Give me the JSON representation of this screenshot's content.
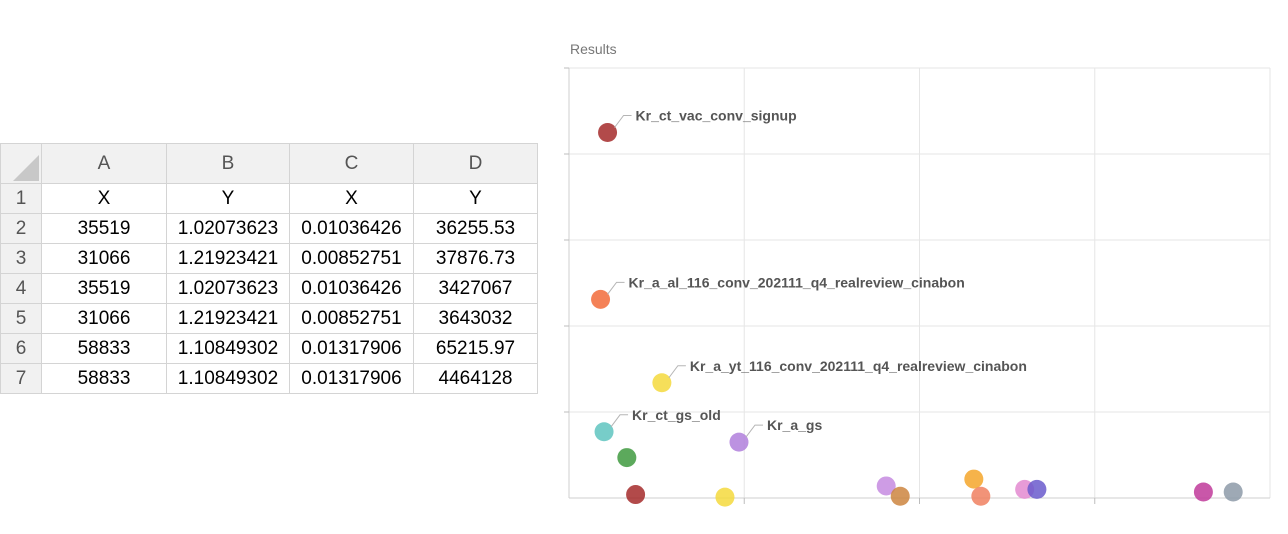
{
  "spreadsheet": {
    "columns": [
      "A",
      "B",
      "C",
      "D"
    ],
    "rows": [
      {
        "num": "1",
        "cells": [
          "X",
          "Y",
          "X",
          "Y"
        ]
      },
      {
        "num": "2",
        "cells": [
          "35519",
          "1.02073623",
          "0.01036426",
          "36255.53"
        ]
      },
      {
        "num": "3",
        "cells": [
          "31066",
          "1.21923421",
          "0.00852751",
          "37876.73"
        ]
      },
      {
        "num": "4",
        "cells": [
          "35519",
          "1.02073623",
          "0.01036426",
          "3427067"
        ]
      },
      {
        "num": "5",
        "cells": [
          "31066",
          "1.21923421",
          "0.00852751",
          "3643032"
        ]
      },
      {
        "num": "6",
        "cells": [
          "58833",
          "1.10849302",
          "0.01317906",
          "65215.97"
        ]
      },
      {
        "num": "7",
        "cells": [
          "58833",
          "1.10849302",
          "0.01317906",
          "4464128"
        ]
      }
    ]
  },
  "chart_data": {
    "type": "scatter",
    "title": "Results",
    "xlabel": "",
    "ylabel": "",
    "xlim": [
      0,
      4
    ],
    "ylim": [
      0,
      5
    ],
    "grid": true,
    "legend": "none",
    "points": [
      {
        "x": 0.22,
        "y": 4.25,
        "color": "#a52a2a",
        "label": "Kr_ct_vac_conv_signup"
      },
      {
        "x": 0.18,
        "y": 2.31,
        "color": "#f26b3a",
        "label": "Kr_a_al_116_conv_202111_q4_realreview_cinabon"
      },
      {
        "x": 0.53,
        "y": 1.34,
        "color": "#f5d93d",
        "label": "Kr_a_yt_116_conv_202111_q4_realreview_cinabon"
      },
      {
        "x": 0.2,
        "y": 0.77,
        "color": "#5fc4c0",
        "label": "Kr_ct_gs_old"
      },
      {
        "x": 0.97,
        "y": 0.65,
        "color": "#b07fdc",
        "label": "Kr_a_gs"
      },
      {
        "x": 0.33,
        "y": 0.47,
        "color": "#3f9a3f",
        "label": ""
      },
      {
        "x": 0.38,
        "y": 0.04,
        "color": "#a52a2a",
        "label": ""
      },
      {
        "x": 0.89,
        "y": 0.01,
        "color": "#f5d93d",
        "label": ""
      },
      {
        "x": 1.81,
        "y": 0.14,
        "color": "#c58be0",
        "label": ""
      },
      {
        "x": 1.89,
        "y": 0.02,
        "color": "#cd853f",
        "label": ""
      },
      {
        "x": 2.31,
        "y": 0.22,
        "color": "#f4a62a",
        "label": ""
      },
      {
        "x": 2.35,
        "y": 0.02,
        "color": "#f08060",
        "label": ""
      },
      {
        "x": 2.6,
        "y": 0.1,
        "color": "#e38ad0",
        "label": ""
      },
      {
        "x": 2.67,
        "y": 0.1,
        "color": "#6a5acd",
        "label": ""
      },
      {
        "x": 3.62,
        "y": 0.07,
        "color": "#c0399a",
        "label": ""
      },
      {
        "x": 3.79,
        "y": 0.07,
        "color": "#8d9aa8",
        "label": ""
      }
    ]
  }
}
